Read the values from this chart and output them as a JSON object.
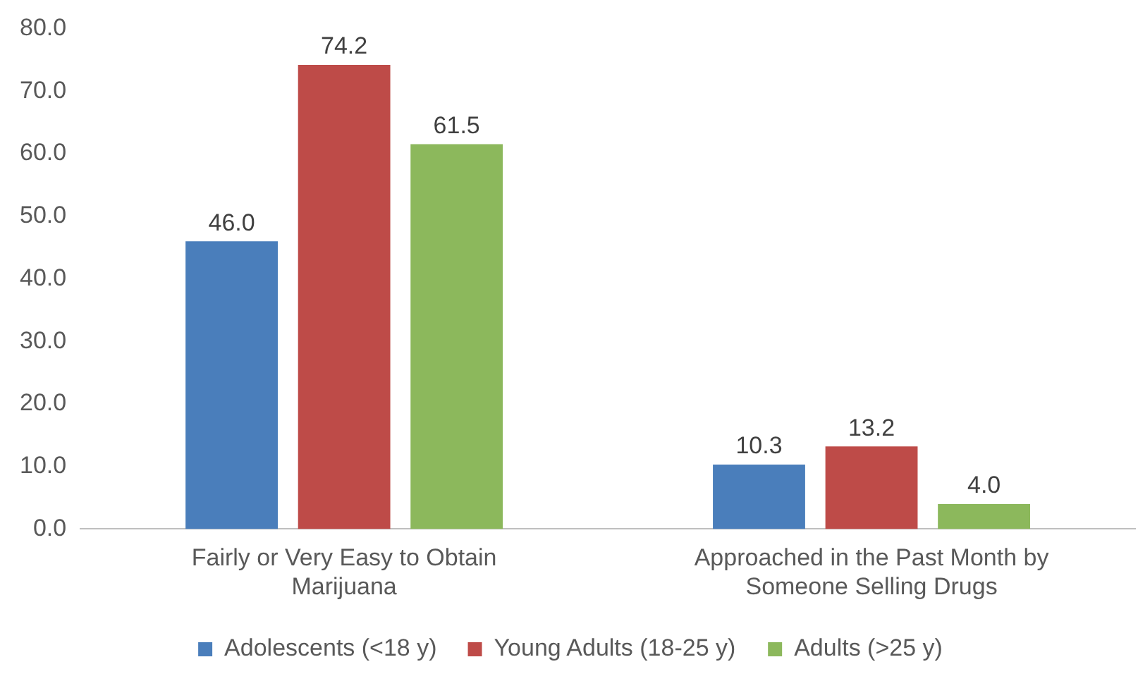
{
  "chart_data": {
    "type": "bar",
    "categories": [
      "Fairly or Very Easy to Obtain Marijuana",
      "Approached in the Past Month by Someone Selling Drugs"
    ],
    "series": [
      {
        "name": "Adolescents (<18 y)",
        "color": "#4a7ebb",
        "values": [
          46.0,
          10.3
        ],
        "value_labels": [
          "46.0",
          "10.3"
        ]
      },
      {
        "name": "Young Adults (18-25 y)",
        "color": "#be4b48",
        "values": [
          74.2,
          13.2
        ],
        "value_labels": [
          "74.2",
          "13.2"
        ]
      },
      {
        "name": "Adults (>25 y)",
        "color": "#8cb85c",
        "values": [
          61.5,
          4.0
        ],
        "value_labels": [
          "61.5",
          "4.0"
        ]
      }
    ],
    "ylim": [
      0,
      80
    ],
    "yticks": [
      {
        "value": 0,
        "label": "0.0"
      },
      {
        "value": 10,
        "label": "10.0"
      },
      {
        "value": 20,
        "label": "20.0"
      },
      {
        "value": 30,
        "label": "30.0"
      },
      {
        "value": 40,
        "label": "40.0"
      },
      {
        "value": 50,
        "label": "50.0"
      },
      {
        "value": 60,
        "label": "60.0"
      },
      {
        "value": 70,
        "label": "70.0"
      },
      {
        "value": 80,
        "label": "80.0"
      }
    ],
    "grid": false,
    "legend": "bottom"
  }
}
